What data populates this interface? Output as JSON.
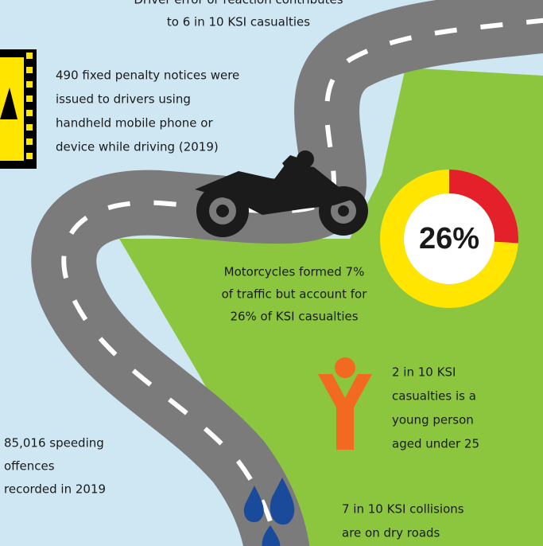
{
  "header": {
    "lines": [
      "Driver error or reaction contributes",
      "to 6 in 10 KSI casualties"
    ]
  },
  "phone": {
    "lines": [
      "490 fixed penalty notices were",
      "issued to drivers using",
      "handheld mobile phone or",
      "device while driving (2019)"
    ]
  },
  "motorcycle": {
    "lines": [
      "Motorcycles formed 7%",
      "of traffic but account for",
      "26% of KSI casualties"
    ]
  },
  "donut": {
    "value": 26,
    "label": "26%"
  },
  "young": {
    "lines": [
      "2 in 10 KSI",
      "casualties is a",
      "young person",
      "aged under 25"
    ]
  },
  "speeding": {
    "lines": [
      "85,016 speeding",
      "offences",
      "recorded in 2019"
    ]
  },
  "dry": {
    "lines": [
      "7 in 10 KSI collisions",
      "are on dry roads"
    ]
  }
}
